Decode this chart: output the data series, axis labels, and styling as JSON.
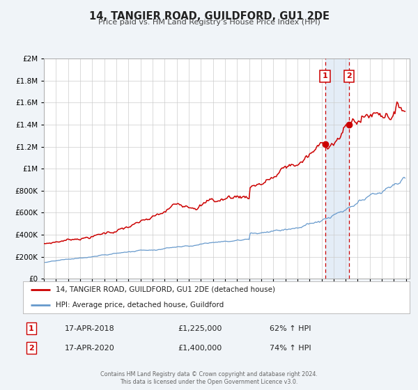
{
  "title": "14, TANGIER ROAD, GUILDFORD, GU1 2DE",
  "subtitle": "Price paid vs. HM Land Registry's House Price Index (HPI)",
  "red_label": "14, TANGIER ROAD, GUILDFORD, GU1 2DE (detached house)",
  "blue_label": "HPI: Average price, detached house, Guildford",
  "marker1_date_str": "17-APR-2018",
  "marker1_price": 1225000,
  "marker1_pct": "62% ↑ HPI",
  "marker2_date_str": "17-APR-2020",
  "marker2_price": 1400000,
  "marker2_pct": "74% ↑ HPI",
  "marker1_x": 2018.29,
  "marker2_x": 2020.29,
  "footer1": "Contains HM Land Registry data © Crown copyright and database right 2024.",
  "footer2": "This data is licensed under the Open Government Licence v3.0.",
  "ylim": [
    0,
    2000000
  ],
  "xlim_min": 1995.0,
  "xlim_max": 2025.3,
  "background_color": "#f0f4f8",
  "plot_bg": "#ffffff",
  "red_color": "#cc0000",
  "blue_color": "#6699cc",
  "shade_color": "#dce8f5",
  "grid_color": "#cccccc",
  "text_dark": "#222222",
  "text_mid": "#444444",
  "text_light": "#666666"
}
